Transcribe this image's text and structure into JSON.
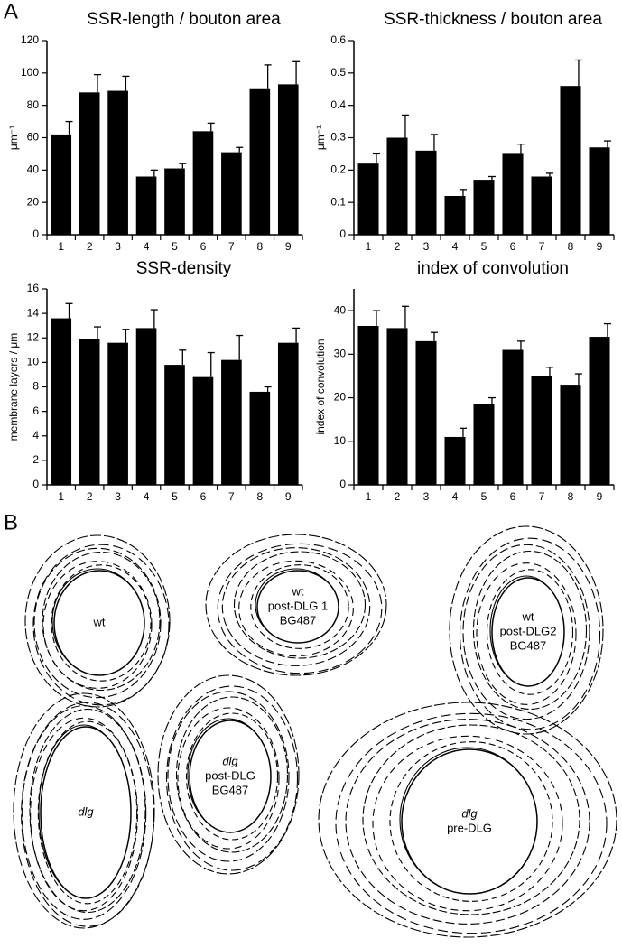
{
  "chart_data": [
    {
      "type": "bar",
      "title": "SSR-length / bouton area",
      "ylabel": "μm⁻¹",
      "categories": [
        "1",
        "2",
        "3",
        "4",
        "5",
        "6",
        "7",
        "8",
        "9"
      ],
      "values": [
        62,
        88,
        89,
        36,
        41,
        64,
        51,
        90,
        93
      ],
      "errors": [
        8,
        11,
        9,
        4,
        3,
        5,
        3,
        15,
        14
      ],
      "color": "#000000",
      "ylim": [
        0,
        120
      ],
      "yticks": [
        0,
        20,
        40,
        60,
        80,
        100,
        120
      ]
    },
    {
      "type": "bar",
      "title": "SSR-thickness / bouton area",
      "ylabel": "μm⁻¹",
      "categories": [
        "1",
        "2",
        "3",
        "4",
        "5",
        "6",
        "7",
        "8",
        "9"
      ],
      "values": [
        0.22,
        0.3,
        0.26,
        0.12,
        0.17,
        0.25,
        0.18,
        0.46,
        0.27
      ],
      "errors": [
        0.03,
        0.07,
        0.05,
        0.02,
        0.01,
        0.03,
        0.01,
        0.08,
        0.02
      ],
      "color": "#000000",
      "ylim": [
        0,
        0.6
      ],
      "yticks": [
        0,
        0.1,
        0.2,
        0.3,
        0.4,
        0.5,
        0.6
      ]
    },
    {
      "type": "bar",
      "title": "SSR-density",
      "ylabel": "membrane layers / μm",
      "categories": [
        "1",
        "2",
        "3",
        "4",
        "5",
        "6",
        "7",
        "8",
        "9"
      ],
      "values": [
        13.6,
        11.9,
        11.6,
        12.8,
        9.8,
        8.8,
        10.2,
        7.6,
        11.6
      ],
      "errors": [
        1.2,
        1.0,
        1.1,
        1.5,
        1.2,
        2.0,
        2.0,
        0.4,
        1.2
      ],
      "color": "#000000",
      "ylim": [
        0,
        16
      ],
      "yticks": [
        0,
        2,
        4,
        6,
        8,
        10,
        12,
        14,
        16
      ]
    },
    {
      "type": "bar",
      "title": "index of convolution",
      "ylabel": "index of convolution",
      "categories": [
        "1",
        "2",
        "3",
        "4",
        "5",
        "6",
        "7",
        "8",
        "9"
      ],
      "values": [
        36.5,
        36,
        33,
        11,
        18.5,
        31,
        25,
        23,
        34
      ],
      "errors": [
        3.5,
        5,
        2,
        2,
        1.5,
        2,
        2,
        2.5,
        3
      ],
      "color": "#000000",
      "ylim": [
        0,
        45
      ],
      "yticks": [
        0,
        10,
        20,
        30,
        40
      ]
    }
  ],
  "panel_labels": [
    "A",
    "B"
  ],
  "drawings": [
    {
      "lines": [
        "wt"
      ]
    },
    {
      "lines": [
        "wt",
        "post-DLG 1",
        "BG487"
      ]
    },
    {
      "lines": [
        "wt",
        "post-DLG2",
        "BG487"
      ]
    },
    {
      "lines": [
        "dlg"
      ]
    },
    {
      "lines": [
        "dlg",
        "post-DLG",
        "BG487"
      ]
    },
    {
      "lines": [
        "dlg",
        "pre-DLG"
      ]
    }
  ]
}
